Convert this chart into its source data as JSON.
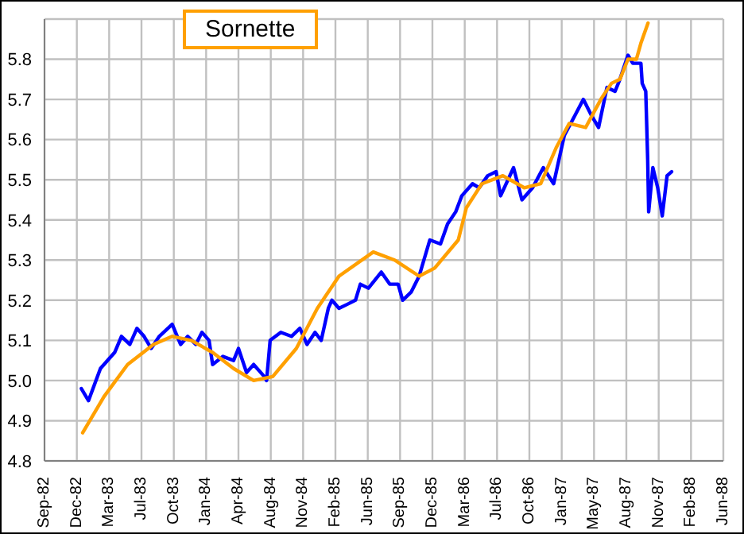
{
  "chart_data": {
    "type": "line",
    "legend": "top left",
    "grid": true,
    "line_style": "solid",
    "marker": "none",
    "xlim": [
      "1982-09-05",
      "1988-06-05"
    ],
    "xticks": [
      {
        "value": "1982-09-05",
        "label": "Sep-82"
      },
      {
        "value": "1982-12-14",
        "label": "Dec-82"
      },
      {
        "value": "1983-03-24",
        "label": "Mar-83"
      },
      {
        "value": "1983-07-02",
        "label": "Jul-83"
      },
      {
        "value": "1983-10-10",
        "label": "Oct-83"
      },
      {
        "value": "1984-01-18",
        "label": "Jan-84"
      },
      {
        "value": "1984-04-27",
        "label": "Apr-84"
      },
      {
        "value": "1984-08-05",
        "label": "Aug-84"
      },
      {
        "value": "1984-11-13",
        "label": "Nov-84"
      },
      {
        "value": "1985-02-21",
        "label": "Feb-85"
      },
      {
        "value": "1985-06-01",
        "label": "Jun-85"
      },
      {
        "value": "1985-09-09",
        "label": "Sep-85"
      },
      {
        "value": "1985-12-18",
        "label": "Dec-85"
      },
      {
        "value": "1986-03-28",
        "label": "Mar-86"
      },
      {
        "value": "1986-07-06",
        "label": "Jul-86"
      },
      {
        "value": "1986-10-14",
        "label": "Oct-86"
      },
      {
        "value": "1987-01-22",
        "label": "Jan-87"
      },
      {
        "value": "1987-05-02",
        "label": "May-87"
      },
      {
        "value": "1987-08-10",
        "label": "Aug-87"
      },
      {
        "value": "1987-11-18",
        "label": "Nov-87"
      },
      {
        "value": "1988-02-26",
        "label": "Feb-88"
      },
      {
        "value": "1988-06-05",
        "label": "Jun-88"
      }
    ],
    "ylim": [
      4.8,
      5.9
    ],
    "yticks": [
      {
        "value": 4.8,
        "label": "4.8"
      },
      {
        "value": 4.9,
        "label": "4.9"
      },
      {
        "value": 5,
        "label": "5.0"
      },
      {
        "value": 5.1,
        "label": "5.1"
      },
      {
        "value": 5.2,
        "label": "5.2"
      },
      {
        "value": 5.3,
        "label": "5.3"
      },
      {
        "value": 5.4,
        "label": "5.4"
      },
      {
        "value": 5.5,
        "label": "5.5"
      },
      {
        "value": 5.6,
        "label": "5.6"
      },
      {
        "value": 5.7,
        "label": "5.7"
      },
      {
        "value": 5.8,
        "label": "5.8"
      },
      {
        "value": 5.9,
        "label": null
      }
    ],
    "series": [
      {
        "color": "#0000ff",
        "x": [
          "1982-12-28",
          "1983-01-19",
          "1983-02-25",
          "1983-04-10",
          "1983-05-01",
          "1983-05-27",
          "1983-06-18",
          "1983-07-10",
          "1983-08-01",
          "1983-08-26",
          "1983-10-05",
          "1983-10-31",
          "1983-11-22",
          "1983-12-17",
          "1984-01-05",
          "1984-01-27",
          "1984-02-07",
          "1984-03-10",
          "1984-04-12",
          "1984-04-27",
          "1984-05-22",
          "1984-06-13",
          "1984-07-16",
          "1984-07-23",
          "1984-08-03",
          "1984-09-05",
          "1984-10-08",
          "1984-11-03",
          "1984-11-25",
          "1984-12-20",
          "1985-01-08",
          "1985-01-30",
          "1985-02-10",
          "1985-03-04",
          "1985-03-30",
          "1985-04-24",
          "1985-05-09",
          "1985-06-03",
          "1985-07-13",
          "1985-08-08",
          "1985-09-03",
          "1985-09-17",
          "1985-10-13",
          "1985-11-07",
          "1985-12-10",
          "1986-01-12",
          "1986-02-03",
          "1986-02-28",
          "1986-03-19",
          "1986-04-21",
          "1986-05-12",
          "1986-06-07",
          "1986-07-03",
          "1986-07-17",
          "1986-08-26",
          "1986-09-21",
          "1986-10-24",
          "1986-11-26",
          "1986-12-28",
          "1987-01-30",
          "1987-03-04",
          "1987-03-30",
          "1987-04-24",
          "1987-05-16",
          "1987-06-11",
          "1987-07-06",
          "1987-07-21",
          "1987-08-15",
          "1987-08-30",
          "1987-09-24",
          "1987-09-28",
          "1987-10-09",
          "1987-10-15",
          "1987-10-18",
          "1987-10-31",
          "1987-11-15",
          "1987-11-29",
          "1987-12-14",
          "1987-12-28"
        ],
        "values": [
          4.98,
          4.95,
          5.03,
          5.07,
          5.11,
          5.09,
          5.13,
          5.11,
          5.08,
          5.11,
          5.14,
          5.09,
          5.11,
          5.09,
          5.12,
          5.1,
          5.04,
          5.06,
          5.05,
          5.08,
          5.02,
          5.04,
          5.01,
          5.0,
          5.1,
          5.12,
          5.11,
          5.13,
          5.09,
          5.12,
          5.1,
          5.18,
          5.2,
          5.18,
          5.19,
          5.2,
          5.24,
          5.23,
          5.27,
          5.24,
          5.24,
          5.2,
          5.22,
          5.26,
          5.35,
          5.34,
          5.39,
          5.42,
          5.46,
          5.49,
          5.48,
          5.51,
          5.52,
          5.46,
          5.53,
          5.45,
          5.48,
          5.53,
          5.49,
          5.61,
          5.66,
          5.7,
          5.66,
          5.63,
          5.73,
          5.72,
          5.75,
          5.81,
          5.79,
          5.79,
          5.74,
          5.72,
          5.55,
          5.42,
          5.53,
          5.48,
          5.41,
          5.51,
          5.52
        ]
      },
      {
        "name": "Sornette",
        "color": "#ffa000",
        "x": [
          "1983-01-01",
          "1983-03-08",
          "1983-05-20",
          "1983-08-08",
          "1983-10-05",
          "1983-12-03",
          "1984-02-07",
          "1984-04-12",
          "1984-06-13",
          "1984-08-11",
          "1984-10-23",
          "1984-12-27",
          "1985-03-04",
          "1985-06-18",
          "1985-08-23",
          "1985-11-07",
          "1985-12-25",
          "1986-03-08",
          "1986-04-02",
          "1986-05-20",
          "1986-07-24",
          "1986-09-28",
          "1986-11-18",
          "1987-01-05",
          "1987-02-14",
          "1987-04-06",
          "1987-05-23",
          "1987-06-25",
          "1987-07-21",
          "1987-08-15",
          "1987-09-10",
          "1987-09-24",
          "1987-10-16"
        ],
        "values": [
          4.87,
          4.96,
          5.04,
          5.09,
          5.11,
          5.1,
          5.07,
          5.03,
          5.0,
          5.01,
          5.08,
          5.18,
          5.26,
          5.32,
          5.3,
          5.26,
          5.28,
          5.35,
          5.43,
          5.49,
          5.51,
          5.48,
          5.49,
          5.58,
          5.64,
          5.63,
          5.7,
          5.74,
          5.75,
          5.8,
          5.8,
          5.84,
          5.89
        ]
      }
    ]
  }
}
